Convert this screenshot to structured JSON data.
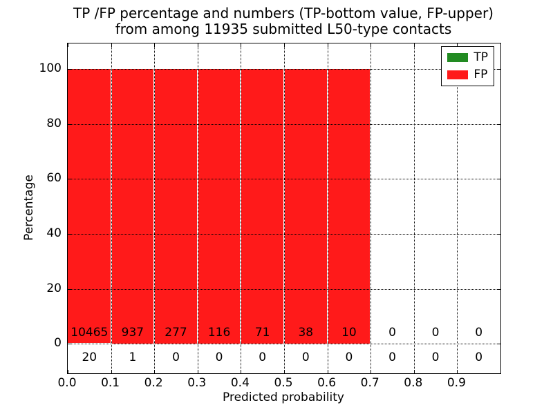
{
  "chart_data": {
    "type": "bar",
    "stacked": true,
    "title_lines": [
      "TP /FP percentage and numbers (TP-bottom value, FP-upper)",
      "from among 11935 submitted L50-type contacts"
    ],
    "xlabel": "Predicted probability",
    "ylabel": "Percentage",
    "xlim": [
      0.0,
      1.0
    ],
    "ylim": [
      -10.8,
      109.4
    ],
    "bin_width": 0.1,
    "bin_starts": [
      0.0,
      0.1,
      0.2,
      0.3,
      0.4,
      0.5,
      0.6,
      0.7,
      0.8,
      0.9
    ],
    "series": [
      {
        "name": "TP",
        "color": "#228b22",
        "counts": [
          20,
          1,
          0,
          0,
          0,
          0,
          0,
          0,
          0,
          0
        ]
      },
      {
        "name": "FP",
        "color": "#ff1a1a",
        "counts": [
          10465,
          937,
          277,
          116,
          71,
          38,
          10,
          0,
          0,
          0
        ]
      }
    ],
    "bar_total_height_percent": [
      100,
      100,
      100,
      100,
      100,
      100,
      100,
      0,
      0,
      0
    ],
    "x_tick_values": [
      0.0,
      0.1,
      0.2,
      0.3,
      0.4,
      0.5,
      0.6,
      0.7,
      0.8,
      0.9
    ],
    "x_tick_labels": [
      "0.0",
      "0.1",
      "0.2",
      "0.3",
      "0.4",
      "0.5",
      "0.6",
      "0.7",
      "0.8",
      "0.9"
    ],
    "y_tick_values": [
      0,
      20,
      40,
      60,
      80,
      100
    ],
    "y_tick_labels": [
      "0",
      "20",
      "40",
      "60",
      "80",
      "100"
    ],
    "grid_x_values": [
      0.1,
      0.2,
      0.3,
      0.4,
      0.5,
      0.6,
      0.7,
      0.8,
      0.9
    ],
    "grid_style": "dotted",
    "legend": {
      "position": "upper right",
      "entries": [
        {
          "label": "TP",
          "color": "#228b22"
        },
        {
          "label": "FP",
          "color": "#ff1a1a"
        }
      ]
    }
  }
}
